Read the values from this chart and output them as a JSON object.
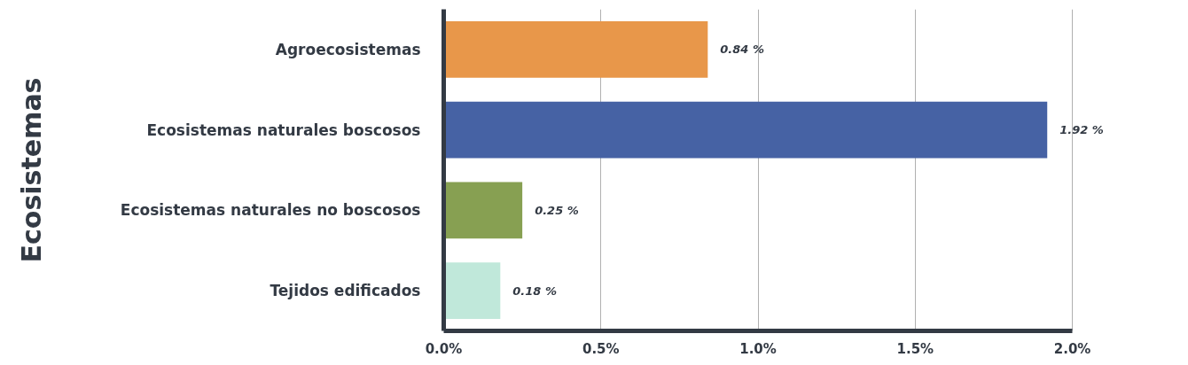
{
  "chart_data": {
    "type": "bar",
    "orientation": "horizontal",
    "ylabel": "Ecosistemas",
    "categories": [
      "Agroecosistemas",
      "Ecosistemas naturales boscosos",
      "Ecosistemas naturales no boscosos",
      "Tejidos edificados"
    ],
    "values": [
      0.84,
      1.92,
      0.25,
      0.18
    ],
    "colors": [
      "#e8974a",
      "#4662a4",
      "#87a052",
      "#c0e8da"
    ],
    "value_labels": [
      "0.84 %",
      "1.92 %",
      "0.25 %",
      "0.18 %"
    ],
    "xlim": [
      0,
      2
    ],
    "xticks": [
      {
        "value": 0,
        "label": "0.0%"
      },
      {
        "value": 0.5,
        "label": "0.5%"
      },
      {
        "value": 1,
        "label": "1.0%"
      },
      {
        "value": 1.5,
        "label": "1.5%"
      },
      {
        "value": 2,
        "label": "2.0%"
      }
    ],
    "grid": "x"
  }
}
